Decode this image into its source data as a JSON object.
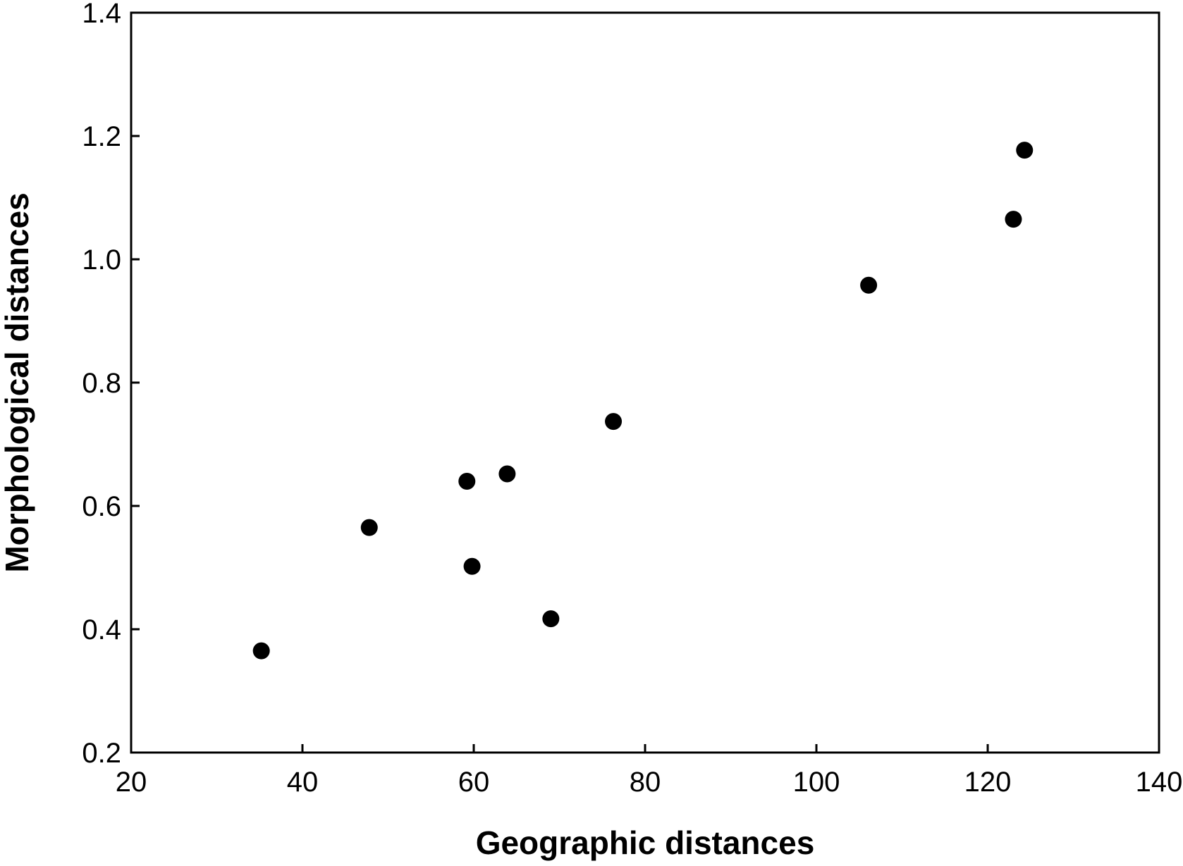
{
  "chart_data": {
    "type": "scatter",
    "title": "",
    "xlabel": "Geographic distances",
    "ylabel": "Morphological distances",
    "xlim": [
      20,
      140
    ],
    "ylim": [
      0.2,
      1.4
    ],
    "xticks": [
      "20",
      "40",
      "60",
      "80",
      "100",
      "120",
      "140"
    ],
    "yticks": [
      "0.2",
      "0.4",
      "0.6",
      "0.8",
      "1.0",
      "1.2",
      "1.4"
    ],
    "grid": false,
    "legend": "none",
    "marker_color": "#000000",
    "series": [
      {
        "x": [
          35.2,
          47.8,
          59.2,
          59.8,
          63.9,
          69.0,
          76.3,
          106.1,
          123.0,
          124.3
        ],
        "y": [
          0.365,
          0.565,
          0.64,
          0.502,
          0.652,
          0.417,
          0.737,
          0.958,
          1.065,
          1.177
        ]
      }
    ]
  }
}
